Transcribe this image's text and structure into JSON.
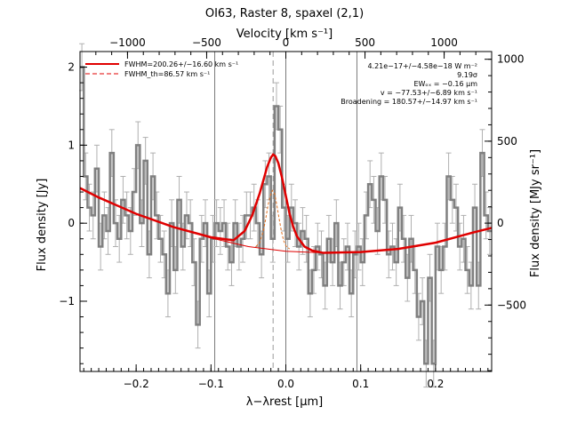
{
  "chart_data": {
    "type": "line",
    "title": "OI63, Raster 8, spaxel (2,1)",
    "xlabel": "λ−λrest [μm]",
    "x2label": "Velocity [km s⁻¹]",
    "ylabel": "Flux density [Jy]",
    "y2label": "Flux density [MJy sr⁻¹]",
    "xlim": [
      -0.275,
      0.275
    ],
    "ylim": [
      -1.9,
      2.2
    ],
    "x2lim": [
      -1300,
      1300
    ],
    "y2lim": [
      -905,
      1047
    ],
    "grid": false,
    "legend_position": "top-left",
    "x_ticks": [
      -0.2,
      -0.1,
      0.0,
      0.1,
      0.2
    ],
    "x_tick_labels": [
      "−0.2",
      "−0.1",
      "0.0",
      "0.1",
      "0.2"
    ],
    "y_ticks": [
      -1,
      0,
      1,
      2
    ],
    "y_tick_labels": [
      "−1",
      "0",
      "1",
      "2"
    ],
    "x2_ticks": [
      -1000,
      -500,
      0,
      500,
      1000
    ],
    "x2_tick_labels": [
      "−1000",
      "−500",
      "0",
      "500",
      "1000"
    ],
    "y2_ticks": [
      -500,
      0,
      500,
      1000
    ],
    "y2_tick_labels": [
      "−500",
      "0",
      "500",
      "1000"
    ],
    "vertical_lines": [
      -0.095,
      0.0,
      0.095
    ],
    "dashed_line_x": -0.017,
    "legend": [
      {
        "label": "FWHM=200.26+/−16.60 km s⁻¹",
        "color": "#e00000",
        "style": "solid"
      },
      {
        "label": "FWHM_th=86.57 km s⁻¹",
        "color": "#e00000",
        "style": "dashed"
      }
    ],
    "annotations": [
      "4.21e−17+/−4.58e−18 W m⁻²",
      "9.19σ",
      "EWₒₓ = −0.16 μm",
      "v = −77.53+/−6.89 km s⁻¹",
      "Broadening = 180.57+/−14.97 km s⁻¹"
    ],
    "series": [
      {
        "name": "",
        "type": "step",
        "color": "#808080",
        "x": [
          -0.275,
          -0.27,
          -0.265,
          -0.26,
          -0.255,
          -0.25,
          -0.245,
          -0.24,
          -0.235,
          -0.23,
          -0.225,
          -0.22,
          -0.215,
          -0.21,
          -0.205,
          -0.2,
          -0.195,
          -0.19,
          -0.185,
          -0.18,
          -0.175,
          -0.17,
          -0.165,
          -0.16,
          -0.155,
          -0.15,
          -0.145,
          -0.14,
          -0.135,
          -0.13,
          -0.125,
          -0.12,
          -0.115,
          -0.11,
          -0.105,
          -0.1,
          -0.095,
          -0.09,
          -0.085,
          -0.08,
          -0.075,
          -0.07,
          -0.065,
          -0.06,
          -0.055,
          -0.05,
          -0.045,
          -0.04,
          -0.035,
          -0.03,
          -0.025,
          -0.02,
          -0.015,
          -0.01,
          -0.005,
          0.0,
          0.005,
          0.01,
          0.015,
          0.02,
          0.025,
          0.03,
          0.035,
          0.04,
          0.045,
          0.05,
          0.055,
          0.06,
          0.065,
          0.07,
          0.075,
          0.08,
          0.085,
          0.09,
          0.095,
          0.1,
          0.105,
          0.11,
          0.115,
          0.12,
          0.125,
          0.13,
          0.135,
          0.14,
          0.145,
          0.15,
          0.155,
          0.16,
          0.165,
          0.17,
          0.175,
          0.18,
          0.185,
          0.19,
          0.195,
          0.2,
          0.205,
          0.21,
          0.215,
          0.22,
          0.225,
          0.23,
          0.235,
          0.24,
          0.245,
          0.25,
          0.255,
          0.26,
          0.265,
          0.27
        ],
        "y": [
          2.0,
          0.6,
          0.2,
          0.1,
          0.7,
          -0.3,
          0.1,
          -0.1,
          0.9,
          0.0,
          -0.2,
          0.3,
          0.1,
          -0.1,
          0.4,
          1.0,
          0.0,
          0.8,
          -0.4,
          0.6,
          0.1,
          -0.2,
          -0.4,
          -0.9,
          0.0,
          -0.6,
          0.3,
          -0.3,
          0.1,
          0.0,
          -0.5,
          -1.3,
          -0.2,
          0.0,
          -0.9,
          -0.2,
          0.0,
          -0.1,
          0.0,
          -0.3,
          -0.5,
          0.0,
          -0.3,
          -0.2,
          0.1,
          0.1,
          0.2,
          0.0,
          -0.4,
          0.5,
          0.6,
          -0.2,
          1.5,
          1.2,
          0.2,
          -0.2,
          0.2,
          0.0,
          -0.3,
          -0.1,
          -0.2,
          -0.9,
          -0.6,
          -0.3,
          -0.4,
          -0.8,
          -0.2,
          -0.5,
          0.0,
          -0.8,
          -0.5,
          -0.3,
          -0.9,
          -0.4,
          -0.3,
          -0.5,
          0.1,
          0.5,
          0.3,
          -0.1,
          0.6,
          0.3,
          -0.4,
          -0.3,
          -0.5,
          0.2,
          -0.2,
          -0.7,
          -0.2,
          -0.6,
          -1.2,
          -1.0,
          -1.8,
          -0.7,
          -1.8,
          -0.3,
          -0.6,
          -0.3,
          0.6,
          0.3,
          0.2,
          -0.3,
          -0.2,
          -0.6,
          -0.8,
          0.2,
          -0.8,
          0.9,
          0.1,
          -0.1
        ],
        "error": 0.3
      },
      {
        "name": "",
        "type": "line",
        "color": "#e00000",
        "style": "solid-thin",
        "x": [
          -0.275,
          -0.25,
          -0.2,
          -0.15,
          -0.1,
          -0.05,
          0.0,
          0.05,
          0.1,
          0.15,
          0.2,
          0.25,
          0.275
        ],
        "y": [
          0.45,
          0.33,
          0.12,
          -0.05,
          -0.19,
          -0.3,
          -0.36,
          -0.38,
          -0.37,
          -0.33,
          -0.25,
          -0.12,
          -0.06
        ]
      },
      {
        "name": "",
        "type": "line",
        "color": "#e00000",
        "style": "solid-thick",
        "x": [
          -0.275,
          -0.25,
          -0.2,
          -0.15,
          -0.1,
          -0.07,
          -0.055,
          -0.045,
          -0.035,
          -0.03,
          -0.025,
          -0.02,
          -0.017,
          -0.014,
          -0.01,
          -0.005,
          0.0,
          0.005,
          0.01,
          0.015,
          0.025,
          0.035,
          0.05,
          0.1,
          0.15,
          0.2,
          0.25,
          0.275
        ],
        "y": [
          0.45,
          0.33,
          0.12,
          -0.05,
          -0.18,
          -0.22,
          -0.1,
          0.1,
          0.38,
          0.55,
          0.72,
          0.84,
          0.88,
          0.86,
          0.77,
          0.58,
          0.35,
          0.12,
          -0.05,
          -0.17,
          -0.3,
          -0.35,
          -0.38,
          -0.37,
          -0.33,
          -0.25,
          -0.12,
          -0.06
        ]
      },
      {
        "name": "",
        "type": "line",
        "color": "#e07020",
        "style": "dashed",
        "x": [
          -0.04,
          -0.035,
          -0.03,
          -0.027,
          -0.024,
          -0.021,
          -0.018,
          -0.015,
          -0.012,
          -0.009,
          -0.006,
          -0.003,
          0.0,
          0.005
        ],
        "y": [
          -0.3,
          -0.25,
          -0.1,
          0.05,
          0.22,
          0.35,
          0.42,
          0.38,
          0.23,
          0.06,
          -0.1,
          -0.22,
          -0.29,
          -0.33
        ]
      }
    ]
  }
}
